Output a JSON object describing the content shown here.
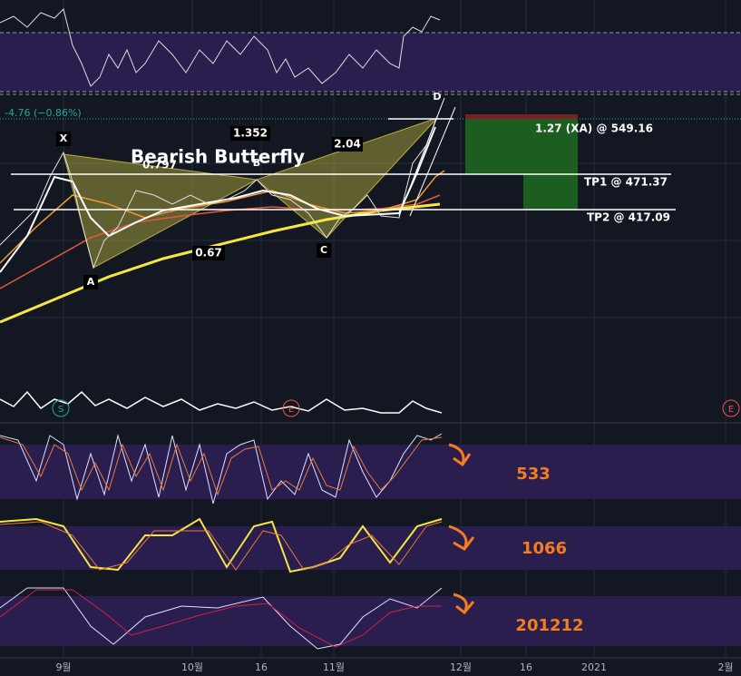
{
  "header": {
    "change": "-4.76 (−0.86%)"
  },
  "pattern": {
    "title": "Bearish Butterfly",
    "points": [
      "X",
      "A",
      "B",
      "C",
      "D"
    ],
    "ratios": [
      "1.352",
      "0.797",
      "0.67",
      "2.04"
    ]
  },
  "levels": [
    "1.27 (XA) @ 549.16",
    "TP1 @ 471.37",
    "TP2 @ 417.09"
  ],
  "markers": [
    "S",
    "E",
    "E"
  ],
  "oscillators": [
    "533",
    "1066",
    "201212"
  ],
  "x_axis": [
    "9월",
    "10월",
    "16",
    "11월",
    "12월",
    "16",
    "2021",
    "2월"
  ]
}
